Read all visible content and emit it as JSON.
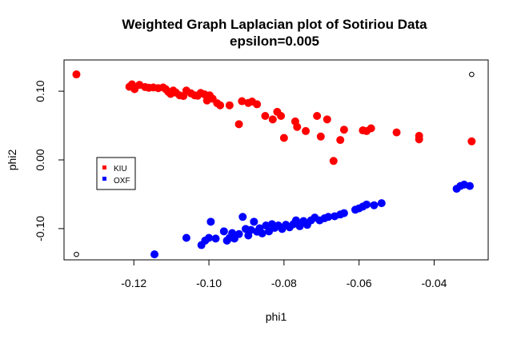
{
  "chart_data": {
    "type": "scatter",
    "title": "Weighted Graph Laplacian plot of Sotiriou Data",
    "subtitle": "epsilon=0.005",
    "xlabel": "phi1",
    "ylabel": "phi2",
    "xlim": [
      -0.1386,
      -0.0256
    ],
    "ylim": [
      -0.1455,
      0.1455
    ],
    "x_ticks": [
      "-0.12",
      "-0.10",
      "-0.08",
      "-0.06",
      "-0.04"
    ],
    "y_ticks": [
      "-0.10",
      "0.00",
      "0.10"
    ],
    "legend": {
      "placement": "left",
      "entries": [
        "KIU",
        "OXF"
      ]
    },
    "grid": false,
    "series": [
      {
        "name": "KIU",
        "color": "#ff0000",
        "points": [
          [
            -0.1353,
            0.1245
          ],
          [
            -0.1212,
            0.1065
          ],
          [
            -0.1205,
            0.11
          ],
          [
            -0.1198,
            0.103
          ],
          [
            -0.1185,
            0.1092
          ],
          [
            -0.117,
            0.106
          ],
          [
            -0.116,
            0.105
          ],
          [
            -0.1148,
            0.1055
          ],
          [
            -0.1135,
            0.1045
          ],
          [
            -0.1122,
            0.1055
          ],
          [
            -0.1115,
            0.103
          ],
          [
            -0.1108,
            0.099
          ],
          [
            -0.1102,
            0.096
          ],
          [
            -0.1095,
            0.101
          ],
          [
            -0.1088,
            0.098
          ],
          [
            -0.1078,
            0.094
          ],
          [
            -0.1068,
            0.093
          ],
          [
            -0.106,
            0.101
          ],
          [
            -0.1048,
            0.097
          ],
          [
            -0.1038,
            0.094
          ],
          [
            -0.103,
            0.0935
          ],
          [
            -0.1022,
            0.0975
          ],
          [
            -0.1012,
            0.0955
          ],
          [
            -0.1005,
            0.0865
          ],
          [
            -0.0998,
            0.094
          ],
          [
            -0.099,
            0.089
          ],
          [
            -0.0978,
            0.0825
          ],
          [
            -0.097,
            0.0795
          ],
          [
            -0.0945,
            0.0795
          ],
          [
            -0.092,
            0.052
          ],
          [
            -0.0912,
            0.0855
          ],
          [
            -0.0895,
            0.083
          ],
          [
            -0.0885,
            0.085
          ],
          [
            -0.0872,
            0.081
          ],
          [
            -0.085,
            0.064
          ],
          [
            -0.083,
            0.059
          ],
          [
            -0.0818,
            0.07
          ],
          [
            -0.0808,
            0.064
          ],
          [
            -0.08,
            0.032
          ],
          [
            -0.077,
            0.056
          ],
          [
            -0.0765,
            0.048
          ],
          [
            -0.0742,
            0.042
          ],
          [
            -0.0712,
            0.064
          ],
          [
            -0.0702,
            0.034
          ],
          [
            -0.0685,
            0.059
          ],
          [
            -0.0668,
            -0.0015
          ],
          [
            -0.065,
            0.029
          ],
          [
            -0.064,
            0.044
          ],
          [
            -0.059,
            0.043
          ],
          [
            -0.058,
            0.042
          ],
          [
            -0.0568,
            0.046
          ],
          [
            -0.05,
            0.04
          ],
          [
            -0.044,
            0.035
          ],
          [
            -0.044,
            0.03
          ],
          [
            -0.03,
            0.027
          ]
        ]
      },
      {
        "name": "OXF",
        "color": "#0000ff",
        "points": [
          [
            -0.1145,
            -0.1375
          ],
          [
            -0.106,
            -0.1135
          ],
          [
            -0.102,
            -0.124
          ],
          [
            -0.101,
            -0.1175
          ],
          [
            -0.1,
            -0.1135
          ],
          [
            -0.0995,
            -0.09
          ],
          [
            -0.0982,
            -0.1145
          ],
          [
            -0.096,
            -0.104
          ],
          [
            -0.0952,
            -0.1175
          ],
          [
            -0.0945,
            -0.1135
          ],
          [
            -0.0938,
            -0.1065
          ],
          [
            -0.0932,
            -0.1145
          ],
          [
            -0.092,
            -0.108
          ],
          [
            -0.091,
            -0.083
          ],
          [
            -0.0902,
            -0.1005
          ],
          [
            -0.0895,
            -0.11
          ],
          [
            -0.0888,
            -0.102
          ],
          [
            -0.088,
            -0.09
          ],
          [
            -0.0872,
            -0.1045
          ],
          [
            -0.0865,
            -0.0995
          ],
          [
            -0.0858,
            -0.107
          ],
          [
            -0.0848,
            -0.0955
          ],
          [
            -0.084,
            -0.104
          ],
          [
            -0.0832,
            -0.0935
          ],
          [
            -0.0825,
            -0.099
          ],
          [
            -0.0815,
            -0.0955
          ],
          [
            -0.0805,
            -0.1005
          ],
          [
            -0.0795,
            -0.0945
          ],
          [
            -0.0785,
            -0.098
          ],
          [
            -0.0775,
            -0.0935
          ],
          [
            -0.0768,
            -0.088
          ],
          [
            -0.0758,
            -0.0965
          ],
          [
            -0.0748,
            -0.089
          ],
          [
            -0.0738,
            -0.0945
          ],
          [
            -0.0728,
            -0.088
          ],
          [
            -0.0718,
            -0.084
          ],
          [
            -0.0705,
            -0.088
          ],
          [
            -0.0692,
            -0.085
          ],
          [
            -0.0682,
            -0.083
          ],
          [
            -0.0665,
            -0.082
          ],
          [
            -0.065,
            -0.0795
          ],
          [
            -0.064,
            -0.0775
          ],
          [
            -0.061,
            -0.0725
          ],
          [
            -0.06,
            -0.0705
          ],
          [
            -0.059,
            -0.068
          ],
          [
            -0.058,
            -0.065
          ],
          [
            -0.056,
            -0.066
          ],
          [
            -0.054,
            -0.063
          ],
          [
            -0.034,
            -0.042
          ],
          [
            -0.033,
            -0.038
          ],
          [
            -0.032,
            -0.036
          ],
          [
            -0.0305,
            -0.038
          ]
        ]
      },
      {
        "name": "",
        "color": "#000000",
        "hollow": true,
        "points": [
          [
            -0.1353,
            -0.1375
          ],
          [
            -0.03,
            0.1245
          ]
        ]
      }
    ]
  }
}
